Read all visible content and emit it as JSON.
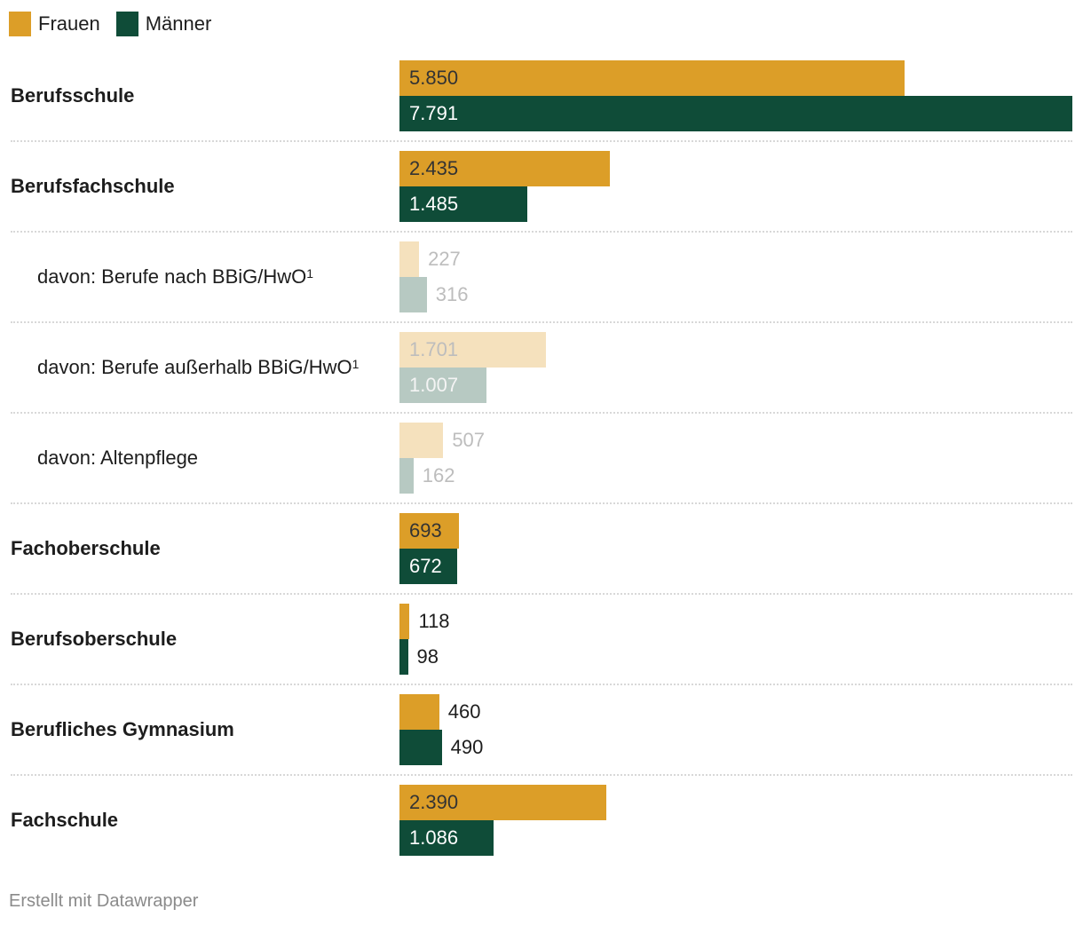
{
  "colors": {
    "Frauen": "#dc9e28",
    "Maenner": "#0f4c38",
    "Frauen_faded": "#f5e1bd",
    "Maenner_faded": "#b7c9c2"
  },
  "chart_data": {
    "type": "bar",
    "orientation": "horizontal",
    "grouped": true,
    "xlim": [
      0,
      7791
    ],
    "legend": {
      "placement": "top-left",
      "entries": [
        "Frauen",
        "Männer"
      ]
    },
    "series": [
      {
        "name": "Frauen"
      },
      {
        "name": "Männer"
      }
    ],
    "categories": [
      {
        "label": "Berufsschule",
        "sup": "",
        "level": "main",
        "values": [
          5850,
          7791
        ],
        "labels": [
          "5.850",
          "7.791"
        ]
      },
      {
        "label": "Berufsfachschule",
        "sup": "",
        "level": "main",
        "values": [
          2435,
          1485
        ],
        "labels": [
          "2.435",
          "1.485"
        ]
      },
      {
        "label": "davon: Berufe nach BBiG/HwO",
        "sup": "1",
        "level": "sub",
        "values": [
          227,
          316
        ],
        "labels": [
          "227",
          "316"
        ]
      },
      {
        "label": "davon: Berufe außerhalb BBiG/HwO",
        "sup": "1",
        "level": "sub",
        "values": [
          1701,
          1007
        ],
        "labels": [
          "1.701",
          "1.007"
        ]
      },
      {
        "label": "davon: Altenpflege",
        "sup": "",
        "level": "sub",
        "values": [
          507,
          162
        ],
        "labels": [
          "507",
          "162"
        ]
      },
      {
        "label": "Fachoberschule",
        "sup": "",
        "level": "main",
        "values": [
          693,
          672
        ],
        "labels": [
          "693",
          "672"
        ]
      },
      {
        "label": "Berufsoberschule",
        "sup": "",
        "level": "main",
        "values": [
          118,
          98
        ],
        "labels": [
          "118",
          "98"
        ]
      },
      {
        "label": "Berufliches Gymnasium",
        "sup": "",
        "level": "main",
        "values": [
          460,
          490
        ],
        "labels": [
          "460",
          "490"
        ]
      },
      {
        "label": "Fachschule",
        "sup": "",
        "level": "main",
        "values": [
          2390,
          1086
        ],
        "labels": [
          "2.390",
          "1.086"
        ]
      }
    ]
  },
  "footer": "Erstellt mit Datawrapper"
}
